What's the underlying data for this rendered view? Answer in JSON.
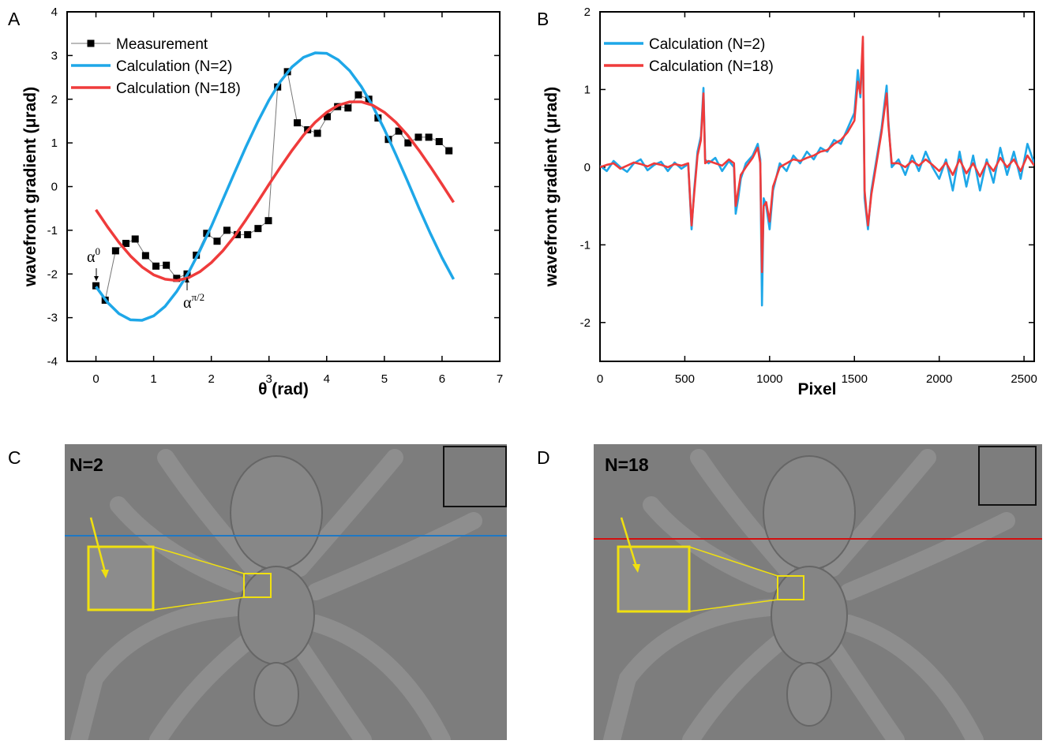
{
  "panel_labels": [
    "A",
    "B",
    "C",
    "D"
  ],
  "chart_data": [
    {
      "type": "line",
      "xlabel": "θ (rad)",
      "ylabel": "wavefront gradient (μrad)",
      "xlim": [
        -0.5,
        7
      ],
      "xticks": [
        0,
        1,
        2,
        3,
        4,
        5,
        6,
        7
      ],
      "ylim": [
        -4,
        4
      ],
      "yticks": [
        -4,
        -3,
        -2,
        -1,
        0,
        1,
        2,
        3,
        4
      ],
      "legend": "upper left",
      "series": [
        {
          "name": "Measurement",
          "color": "#000000",
          "marker": "square",
          "x": [
            0,
            0.16,
            0.34,
            0.52,
            0.68,
            0.86,
            1.04,
            1.22,
            1.4,
            1.58,
            1.74,
            1.92,
            2.1,
            2.27,
            2.45,
            2.63,
            2.81,
            2.99,
            3.15,
            3.32,
            3.49,
            3.67,
            3.84,
            4.01,
            4.19,
            4.37,
            4.55,
            4.73,
            4.89,
            5.07,
            5.25,
            5.41,
            5.59,
            5.77,
            5.95,
            6.12
          ],
          "values": [
            -2.27,
            -2.6,
            -1.47,
            -1.3,
            -1.2,
            -1.58,
            -1.82,
            -1.8,
            -2.1,
            -2.0,
            -1.57,
            -1.07,
            -1.25,
            -1.0,
            -1.1,
            -1.1,
            -0.96,
            -0.78,
            2.28,
            2.63,
            1.46,
            1.3,
            1.22,
            1.6,
            1.83,
            1.8,
            2.1,
            2.0,
            1.57,
            1.08,
            1.27,
            1.0,
            1.13,
            1.13,
            1.03,
            0.82
          ]
        },
        {
          "name": "Calculation (N=2)",
          "color": "#1ea7e8",
          "x": [
            0,
            0.2,
            0.4,
            0.6,
            0.8,
            1,
            1.2,
            1.4,
            1.6,
            1.8,
            2,
            2.2,
            2.4,
            2.6,
            2.8,
            3,
            3.2,
            3.4,
            3.6,
            3.8,
            4,
            4.2,
            4.4,
            4.6,
            4.8,
            5,
            5.2,
            5.4,
            5.6,
            5.8,
            6,
            6.2
          ],
          "values": [
            -2.29,
            -2.65,
            -2.91,
            -3.05,
            -3.06,
            -2.96,
            -2.74,
            -2.4,
            -1.98,
            -1.47,
            -0.91,
            -0.3,
            0.31,
            0.91,
            1.47,
            1.98,
            2.41,
            2.74,
            2.96,
            3.06,
            3.05,
            2.9,
            2.65,
            2.29,
            1.84,
            1.31,
            0.73,
            0.13,
            -0.49,
            -1.08,
            -1.63,
            -2.12
          ]
        },
        {
          "name": "Calculation (N=18)",
          "color": "#ef3b3b",
          "x": [
            0,
            0.2,
            0.4,
            0.6,
            0.8,
            1,
            1.2,
            1.4,
            1.6,
            1.8,
            2,
            2.2,
            2.4,
            2.6,
            2.8,
            3,
            3.2,
            3.4,
            3.6,
            3.8,
            4,
            4.2,
            4.4,
            4.6,
            4.8,
            5,
            5.2,
            5.4,
            5.6,
            5.8,
            6,
            6.2
          ],
          "values": [
            -0.53,
            -0.92,
            -1.28,
            -1.59,
            -1.84,
            -2.02,
            -2.12,
            -2.15,
            -2.09,
            -1.95,
            -1.74,
            -1.47,
            -1.14,
            -0.76,
            -0.36,
            0.05,
            0.45,
            0.83,
            1.18,
            1.47,
            1.7,
            1.86,
            1.94,
            1.94,
            1.86,
            1.7,
            1.47,
            1.18,
            0.83,
            0.45,
            0.05,
            -0.36
          ]
        }
      ],
      "annotations": [
        {
          "text": "α",
          "sup": "0"
        },
        {
          "text": "α",
          "sup": "π/2"
        }
      ]
    },
    {
      "type": "line",
      "xlabel": "Pixel",
      "ylabel": "wavefront gradient (μrad)",
      "xlim": [
        0,
        2560
      ],
      "xticks": [
        0,
        500,
        1000,
        1500,
        2000,
        2500
      ],
      "ylim": [
        -2.5,
        2
      ],
      "yticks": [
        -2,
        -1,
        0,
        1,
        2
      ],
      "legend": "upper left",
      "x": [
        0,
        40,
        80,
        120,
        160,
        200,
        240,
        280,
        320,
        360,
        400,
        440,
        480,
        520,
        540,
        555,
        575,
        595,
        610,
        620,
        640,
        680,
        720,
        760,
        790,
        800,
        815,
        830,
        860,
        900,
        930,
        945,
        955,
        965,
        980,
        1000,
        1020,
        1060,
        1100,
        1140,
        1180,
        1220,
        1260,
        1300,
        1340,
        1380,
        1420,
        1460,
        1500,
        1520,
        1535,
        1550,
        1560,
        1570,
        1580,
        1600,
        1630,
        1660,
        1690,
        1700,
        1720,
        1760,
        1800,
        1840,
        1880,
        1920,
        1960,
        2000,
        2040,
        2080,
        2120,
        2160,
        2200,
        2240,
        2280,
        2320,
        2360,
        2400,
        2440,
        2480,
        2520,
        2560
      ],
      "series": [
        {
          "name": "Calculation (N=2)",
          "color": "#1ea7e8",
          "values": [
            0.02,
            -0.05,
            0.08,
            0.0,
            -0.06,
            0.05,
            0.1,
            -0.04,
            0.03,
            0.07,
            -0.05,
            0.06,
            -0.02,
            0.04,
            -0.8,
            -0.3,
            0.2,
            0.4,
            1.02,
            0.1,
            0.05,
            0.12,
            -0.05,
            0.08,
            0.0,
            -0.6,
            -0.4,
            -0.15,
            0.05,
            0.15,
            0.3,
            0.1,
            -1.78,
            -0.4,
            -0.5,
            -0.8,
            -0.3,
            0.05,
            -0.05,
            0.15,
            0.05,
            0.2,
            0.1,
            0.25,
            0.2,
            0.35,
            0.3,
            0.5,
            0.7,
            1.25,
            0.9,
            1.6,
            -0.4,
            -0.6,
            -0.8,
            -0.3,
            0.1,
            0.5,
            1.05,
            0.6,
            0.0,
            0.1,
            -0.1,
            0.15,
            -0.05,
            0.2,
            0.0,
            -0.15,
            0.1,
            -0.3,
            0.2,
            -0.25,
            0.15,
            -0.3,
            0.1,
            -0.2,
            0.25,
            -0.1,
            0.2,
            -0.15,
            0.3,
            0.05
          ]
        },
        {
          "name": "Calculation (N=18)",
          "color": "#ef3b3b",
          "values": [
            0.0,
            0.03,
            0.05,
            -0.02,
            0.02,
            0.06,
            0.04,
            0.01,
            0.05,
            0.03,
            0.0,
            0.04,
            0.02,
            0.05,
            -0.75,
            -0.35,
            0.15,
            0.35,
            0.95,
            0.05,
            0.08,
            0.05,
            0.02,
            0.1,
            0.05,
            -0.5,
            -0.3,
            -0.1,
            0.0,
            0.12,
            0.25,
            0.05,
            -1.35,
            -0.5,
            -0.45,
            -0.7,
            -0.25,
            0.0,
            0.05,
            0.1,
            0.08,
            0.12,
            0.15,
            0.2,
            0.22,
            0.3,
            0.35,
            0.45,
            0.6,
            1.1,
            0.95,
            1.68,
            -0.3,
            -0.55,
            -0.75,
            -0.35,
            0.05,
            0.45,
            0.95,
            0.55,
            0.05,
            0.05,
            0.0,
            0.08,
            0.02,
            0.1,
            0.03,
            -0.05,
            0.06,
            -0.1,
            0.1,
            -0.08,
            0.05,
            -0.12,
            0.06,
            -0.05,
            0.12,
            0.0,
            0.1,
            -0.05,
            0.15,
            0.02
          ]
        }
      ]
    }
  ],
  "images": [
    {
      "label": "N=2"
    },
    {
      "label": "N=18"
    }
  ]
}
